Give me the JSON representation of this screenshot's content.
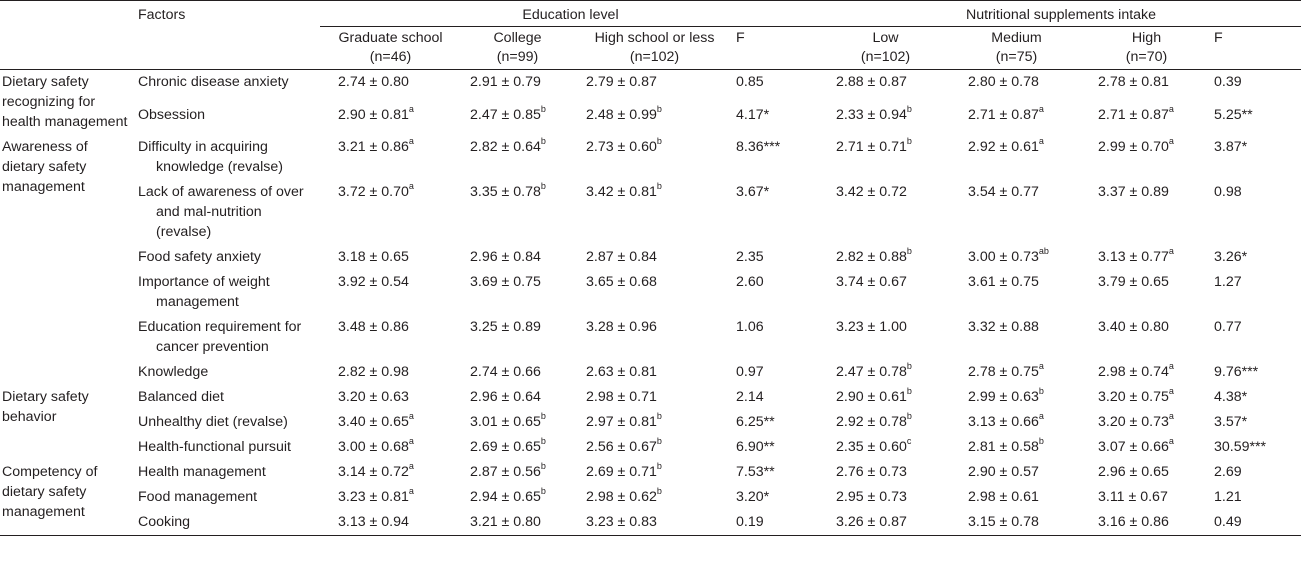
{
  "headers": {
    "factors": "Factors",
    "education_level": "Education level",
    "supplements": "Nutritional supplements intake",
    "edu_cols": [
      {
        "line1": "Graduate school",
        "line2": "(n=46)"
      },
      {
        "line1": "College",
        "line2": "(n=99)"
      },
      {
        "line1": "High school or less",
        "line2": "(n=102)"
      },
      {
        "line1": "F",
        "line2": ""
      }
    ],
    "sup_cols": [
      {
        "line1": "Low",
        "line2": "(n=102)"
      },
      {
        "line1": "Medium",
        "line2": "(n=75)"
      },
      {
        "line1": "High",
        "line2": "(n=70)"
      },
      {
        "line1": "F",
        "line2": ""
      }
    ]
  },
  "rows": [
    {
      "cat": "Dietary safety recognizing for health management",
      "cat_rowspan": 2,
      "factor": [
        "Chronic disease anxiety"
      ],
      "v": [
        [
          "2.74 ± 0.80",
          ""
        ],
        [
          "2.91 ± 0.79",
          ""
        ],
        [
          "2.79 ± 0.87",
          ""
        ],
        [
          "0.85",
          ""
        ],
        [
          "2.88 ± 0.87",
          ""
        ],
        [
          "2.80 ± 0.78",
          ""
        ],
        [
          "2.78 ± 0.81",
          ""
        ],
        [
          "0.39",
          ""
        ]
      ]
    },
    {
      "factor": [
        "Obsession"
      ],
      "v": [
        [
          "2.90 ± 0.81",
          "a"
        ],
        [
          "2.47 ± 0.85",
          "b"
        ],
        [
          "2.48 ± 0.99",
          "b"
        ],
        [
          "4.17*",
          ""
        ],
        [
          "2.33 ± 0.94",
          "b"
        ],
        [
          "2.71 ± 0.87",
          "a"
        ],
        [
          "2.71 ± 0.87",
          "a"
        ],
        [
          "5.25**",
          ""
        ]
      ]
    },
    {
      "cat": "Awareness of dietary safety management",
      "cat_rowspan": 6,
      "factor": [
        "Difficulty in acquiring",
        "knowledge (revalse)"
      ],
      "v": [
        [
          "3.21 ± 0.86",
          "a"
        ],
        [
          "2.82 ± 0.64",
          "b"
        ],
        [
          "2.73 ± 0.60",
          "b"
        ],
        [
          "8.36***",
          ""
        ],
        [
          "2.71 ± 0.71",
          "b"
        ],
        [
          "2.92 ± 0.61",
          "a"
        ],
        [
          "2.99 ± 0.70",
          "a"
        ],
        [
          "3.87*",
          ""
        ]
      ]
    },
    {
      "factor": [
        "Lack of awareness of over",
        "and mal-nutrition",
        "(revalse)"
      ],
      "v": [
        [
          "3.72 ± 0.70",
          "a"
        ],
        [
          "3.35 ± 0.78",
          "b"
        ],
        [
          "3.42 ± 0.81",
          "b"
        ],
        [
          "3.67*",
          ""
        ],
        [
          "3.42 ± 0.72",
          ""
        ],
        [
          "3.54 ± 0.77",
          ""
        ],
        [
          "3.37 ± 0.89",
          ""
        ],
        [
          "0.98",
          ""
        ]
      ]
    },
    {
      "factor": [
        "Food safety anxiety"
      ],
      "v": [
        [
          "3.18 ± 0.65",
          ""
        ],
        [
          "2.96 ± 0.84",
          ""
        ],
        [
          "2.87 ± 0.84",
          ""
        ],
        [
          "2.35",
          ""
        ],
        [
          "2.82 ± 0.88",
          "b"
        ],
        [
          "3.00 ± 0.73",
          "ab"
        ],
        [
          "3.13 ± 0.77",
          "a"
        ],
        [
          "3.26*",
          ""
        ]
      ]
    },
    {
      "factor": [
        "Importance of weight",
        "management"
      ],
      "v": [
        [
          "3.92 ± 0.54",
          ""
        ],
        [
          "3.69 ± 0.75",
          ""
        ],
        [
          "3.65 ± 0.68",
          ""
        ],
        [
          "2.60",
          ""
        ],
        [
          "3.74 ± 0.67",
          ""
        ],
        [
          "3.61 ± 0.75",
          ""
        ],
        [
          "3.79 ± 0.65",
          ""
        ],
        [
          "1.27",
          ""
        ]
      ]
    },
    {
      "factor": [
        "Education requirement for",
        "cancer prevention"
      ],
      "v": [
        [
          "3.48 ± 0.86",
          ""
        ],
        [
          "3.25 ± 0.89",
          ""
        ],
        [
          "3.28 ± 0.96",
          ""
        ],
        [
          "1.06",
          ""
        ],
        [
          "3.23 ± 1.00",
          ""
        ],
        [
          "3.32 ± 0.88",
          ""
        ],
        [
          "3.40 ± 0.80",
          ""
        ],
        [
          "0.77",
          ""
        ]
      ]
    },
    {
      "factor": [
        "Knowledge"
      ],
      "v": [
        [
          "2.82 ± 0.98",
          ""
        ],
        [
          "2.74 ± 0.66",
          ""
        ],
        [
          "2.63 ± 0.81",
          ""
        ],
        [
          "0.97",
          ""
        ],
        [
          "2.47 ± 0.78",
          "b"
        ],
        [
          "2.78 ± 0.75",
          "a"
        ],
        [
          "2.98 ± 0.74",
          "a"
        ],
        [
          "9.76***",
          ""
        ]
      ]
    },
    {
      "cat": "Dietary safety behavior",
      "cat_rowspan": 3,
      "factor": [
        "Balanced diet"
      ],
      "v": [
        [
          "3.20 ± 0.63",
          ""
        ],
        [
          "2.96 ± 0.64",
          ""
        ],
        [
          "2.98 ± 0.71",
          ""
        ],
        [
          "2.14",
          ""
        ],
        [
          "2.90 ± 0.61",
          "b"
        ],
        [
          "2.99 ± 0.63",
          "b"
        ],
        [
          "3.20 ± 0.75",
          "a"
        ],
        [
          "4.38*",
          ""
        ]
      ]
    },
    {
      "factor": [
        "Unhealthy diet (revalse)"
      ],
      "v": [
        [
          "3.40 ± 0.65",
          "a"
        ],
        [
          "3.01 ± 0.65",
          "b"
        ],
        [
          "2.97 ± 0.81",
          "b"
        ],
        [
          "6.25**",
          ""
        ],
        [
          "2.92 ± 0.78",
          "b"
        ],
        [
          "3.13 ± 0.66",
          "a"
        ],
        [
          "3.20 ± 0.73",
          "a"
        ],
        [
          "3.57*",
          ""
        ]
      ]
    },
    {
      "factor": [
        "Health-functional pursuit"
      ],
      "v": [
        [
          "3.00 ± 0.68",
          "a"
        ],
        [
          "2.69 ± 0.65",
          "b"
        ],
        [
          "2.56 ± 0.67",
          "b"
        ],
        [
          "6.90**",
          ""
        ],
        [
          "2.35 ± 0.60",
          "c"
        ],
        [
          "2.81 ± 0.58",
          "b"
        ],
        [
          "3.07 ± 0.66",
          "a"
        ],
        [
          "30.59***",
          ""
        ]
      ]
    },
    {
      "cat": "Competency of dietary safety management",
      "cat_rowspan": 3,
      "factor": [
        "Health management"
      ],
      "v": [
        [
          "3.14 ± 0.72",
          "a"
        ],
        [
          "2.87 ± 0.56",
          "b"
        ],
        [
          "2.69 ± 0.71",
          "b"
        ],
        [
          "7.53**",
          ""
        ],
        [
          "2.76 ± 0.73",
          ""
        ],
        [
          "2.90 ± 0.57",
          ""
        ],
        [
          "2.96 ± 0.65",
          ""
        ],
        [
          "2.69",
          ""
        ]
      ]
    },
    {
      "factor": [
        "Food management"
      ],
      "v": [
        [
          "3.23 ± 0.81",
          "a"
        ],
        [
          "2.94 ± 0.65",
          "b"
        ],
        [
          "2.98 ± 0.62",
          "b"
        ],
        [
          "3.20*",
          ""
        ],
        [
          "2.95 ± 0.73",
          ""
        ],
        [
          "2.98 ± 0.61",
          ""
        ],
        [
          "3.11 ± 0.67",
          ""
        ],
        [
          "1.21",
          ""
        ]
      ]
    },
    {
      "factor": [
        "Cooking"
      ],
      "v": [
        [
          "3.13 ± 0.94",
          ""
        ],
        [
          "3.21 ± 0.80",
          ""
        ],
        [
          "3.23 ± 0.83",
          ""
        ],
        [
          "0.19",
          ""
        ],
        [
          "3.26 ± 0.87",
          ""
        ],
        [
          "3.15 ± 0.78",
          ""
        ],
        [
          "3.16 ± 0.86",
          ""
        ],
        [
          "0.49",
          ""
        ]
      ]
    }
  ]
}
